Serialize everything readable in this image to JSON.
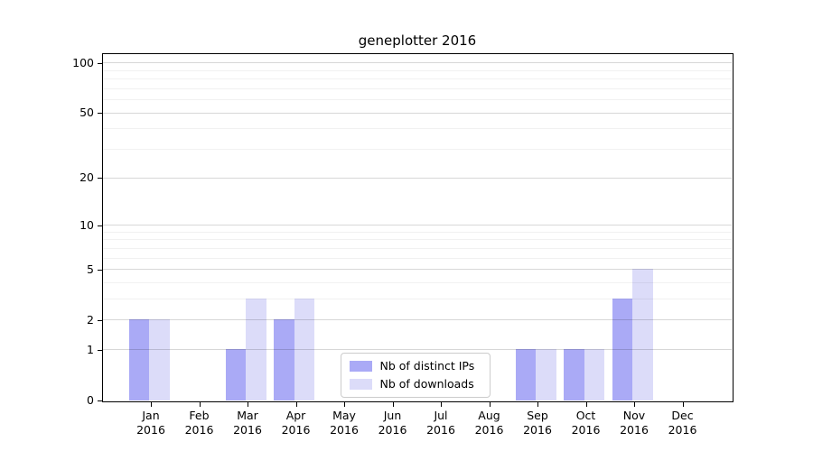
{
  "chart_data": {
    "type": "bar",
    "title": "geneplotter 2016",
    "categories": [
      "Jan",
      "Feb",
      "Mar",
      "Apr",
      "May",
      "Jun",
      "Jul",
      "Aug",
      "Sep",
      "Oct",
      "Nov",
      "Dec"
    ],
    "year_label": "2016",
    "series": [
      {
        "name": "Nb of distinct IPs",
        "color": "#aaaaf6",
        "values": [
          2,
          0,
          1,
          2,
          0,
          0,
          0,
          0,
          1,
          1,
          3,
          0
        ]
      },
      {
        "name": "Nb of downloads",
        "color": "#dcdcf9",
        "values": [
          2,
          0,
          3,
          3,
          0,
          0,
          0,
          0,
          1,
          1,
          5,
          0
        ]
      }
    ],
    "xlabel": "",
    "ylabel": "",
    "y_scale": "log1p",
    "y_major_ticks": [
      0,
      1,
      2,
      5,
      10,
      20,
      50,
      100
    ],
    "y_minor_ticks": [
      3,
      4,
      6,
      7,
      8,
      9,
      30,
      40,
      60,
      70,
      80,
      90
    ],
    "ylim": [
      0,
      112
    ],
    "grid": "horizontal",
    "legend_position": "inside-bottom-center",
    "colors": {
      "axis": "#000000",
      "major_grid": "#d6d6d6",
      "minor_grid": "#efefef",
      "legend_border": "#cccccc"
    }
  }
}
